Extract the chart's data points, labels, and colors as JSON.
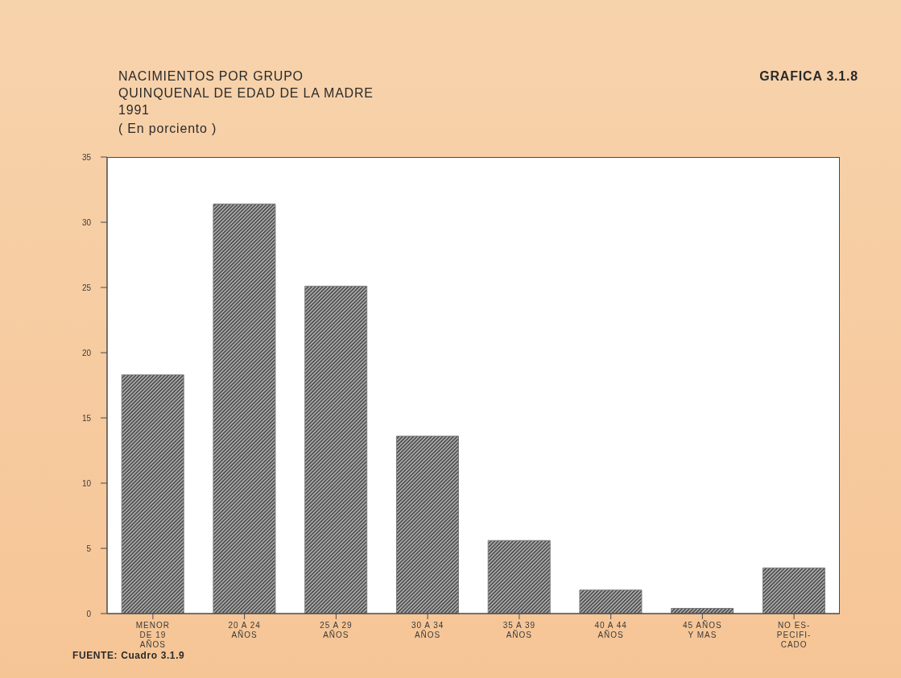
{
  "chart_data": {
    "type": "bar",
    "title": "NACIMIENTOS POR GRUPO\nQUINQUENAL DE EDAD DE LA MADRE\n1991",
    "subtitle": "( En porciento )",
    "annotations": [
      "GRAFICA 3.1.8",
      "FUENTE: Cuadro 3.1.9"
    ],
    "categories": [
      "MENOR\nDE 19\nAÑOS",
      "20 A 24\nAÑOS",
      "25 A 29\nAÑOS",
      "30 A 34\nAÑOS",
      "35 A 39\nAÑOS",
      "40 A 44\nAÑOS",
      "45 AÑOS\nY MAS",
      "NO ES-\nPECIFI-\nCADO"
    ],
    "values": [
      18.3,
      31.4,
      25.1,
      13.6,
      5.6,
      1.8,
      0.4,
      3.5
    ],
    "color": "#7a7a7a",
    "ylim": [
      0,
      35
    ],
    "yticks": [
      0,
      5,
      10,
      15,
      20,
      25,
      30,
      35
    ]
  }
}
